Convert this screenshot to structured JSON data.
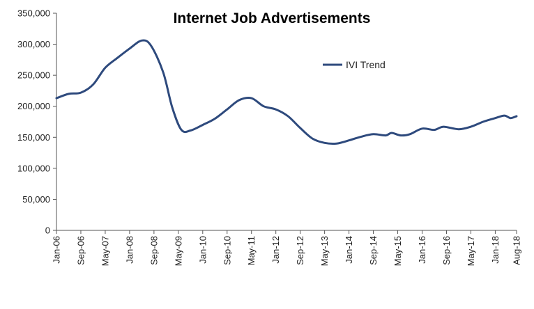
{
  "chart_data": {
    "type": "line",
    "title": "Internet Job Advertisements",
    "xlabel": "",
    "ylabel": "",
    "ylim": [
      0,
      350000
    ],
    "yticks": [
      "0",
      "50,000",
      "100,000",
      "150,000",
      "200,000",
      "250,000",
      "300,000",
      "350,000"
    ],
    "xticks": [
      "Jan-06",
      "Sep-06",
      "May-07",
      "Jan-08",
      "Sep-08",
      "May-09",
      "Jan-10",
      "Sep-10",
      "May-11",
      "Jan-12",
      "Sep-12",
      "May-13",
      "Jan-14",
      "Sep-14",
      "May-15",
      "Jan-16",
      "Sep-16",
      "May-17",
      "Jan-18",
      "Aug-18"
    ],
    "grid": false,
    "legend": "top-center",
    "series": [
      {
        "name": "IVI Trend",
        "color": "#2e4a7d",
        "points": [
          [
            "2006-01",
            213000
          ],
          [
            "2006-05",
            220000
          ],
          [
            "2006-09",
            222000
          ],
          [
            "2007-01",
            235000
          ],
          [
            "2007-05",
            262000
          ],
          [
            "2007-09",
            278000
          ],
          [
            "2008-01",
            293000
          ],
          [
            "2008-05",
            306000
          ],
          [
            "2008-08",
            298000
          ],
          [
            "2008-12",
            255000
          ],
          [
            "2009-03",
            198000
          ],
          [
            "2009-06",
            162000
          ],
          [
            "2009-09",
            161000
          ],
          [
            "2010-01",
            170000
          ],
          [
            "2010-05",
            180000
          ],
          [
            "2010-09",
            195000
          ],
          [
            "2011-01",
            210000
          ],
          [
            "2011-05",
            213000
          ],
          [
            "2011-09",
            200000
          ],
          [
            "2012-01",
            195000
          ],
          [
            "2012-05",
            184000
          ],
          [
            "2012-09",
            165000
          ],
          [
            "2013-01",
            148000
          ],
          [
            "2013-05",
            141000
          ],
          [
            "2013-09",
            140000
          ],
          [
            "2014-01",
            145000
          ],
          [
            "2014-05",
            151000
          ],
          [
            "2014-09",
            155000
          ],
          [
            "2015-01",
            153000
          ],
          [
            "2015-03",
            157000
          ],
          [
            "2015-06",
            153000
          ],
          [
            "2015-09",
            155000
          ],
          [
            "2016-01",
            164000
          ],
          [
            "2016-05",
            162000
          ],
          [
            "2016-08",
            167000
          ],
          [
            "2017-01",
            163000
          ],
          [
            "2017-05",
            167000
          ],
          [
            "2017-09",
            175000
          ],
          [
            "2018-01",
            181000
          ],
          [
            "2018-04",
            185000
          ],
          [
            "2018-06",
            181000
          ],
          [
            "2018-08",
            184000
          ]
        ]
      }
    ]
  }
}
